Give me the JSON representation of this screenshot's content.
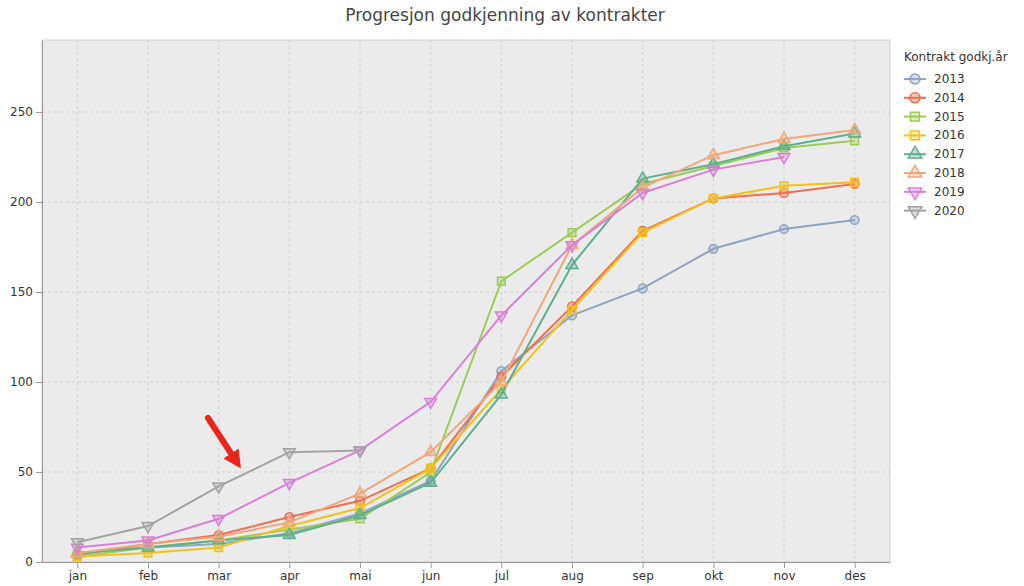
{
  "chart_data": {
    "type": "line",
    "title": "Progresjon godkjenning av kontrakter",
    "legend_title": "Kontrakt godkj.år",
    "categories": [
      "jan",
      "feb",
      "mar",
      "apr",
      "mai",
      "jun",
      "jul",
      "aug",
      "sep",
      "okt",
      "nov",
      "des"
    ],
    "series": [
      {
        "name": "2013",
        "color": "#8fa3c2",
        "marker": "circle",
        "values": [
          5,
          8,
          10,
          16,
          27,
          45,
          106,
          137,
          152,
          174,
          185,
          190
        ]
      },
      {
        "name": "2014",
        "color": "#ee6e50",
        "marker": "circle",
        "values": [
          4,
          10,
          15,
          25,
          34,
          52,
          103,
          142,
          184,
          202,
          205,
          210
        ]
      },
      {
        "name": "2015",
        "color": "#9ccb5a",
        "marker": "square",
        "values": [
          3,
          8,
          12,
          18,
          24,
          50,
          156,
          183,
          210,
          220,
          230,
          234
        ]
      },
      {
        "name": "2016",
        "color": "#f2c11c",
        "marker": "square",
        "values": [
          3,
          5,
          8,
          20,
          30,
          52,
          96,
          140,
          183,
          202,
          209,
          211
        ]
      },
      {
        "name": "2017",
        "color": "#5db08c",
        "marker": "triangle",
        "values": [
          5,
          8,
          12,
          15,
          26,
          44,
          93,
          165,
          213,
          221,
          231,
          238
        ]
      },
      {
        "name": "2018",
        "color": "#efa77c",
        "marker": "triangle",
        "values": [
          5,
          10,
          14,
          22,
          38,
          61,
          100,
          176,
          208,
          226,
          235,
          240
        ]
      },
      {
        "name": "2019",
        "color": "#d781d6",
        "marker": "triangle-down",
        "values": [
          8,
          12,
          24,
          44,
          62,
          89,
          137,
          176,
          205,
          218,
          225,
          null
        ]
      },
      {
        "name": "2020",
        "color": "#a3a3a3",
        "marker": "triangle-down",
        "values": [
          11,
          20,
          42,
          61,
          62,
          null,
          null,
          null,
          null,
          null,
          null,
          null
        ]
      }
    ],
    "ylim": [
      0,
      290
    ],
    "yticks": [
      0,
      50,
      100,
      150,
      200,
      250
    ],
    "grid": true,
    "legend": "right"
  }
}
